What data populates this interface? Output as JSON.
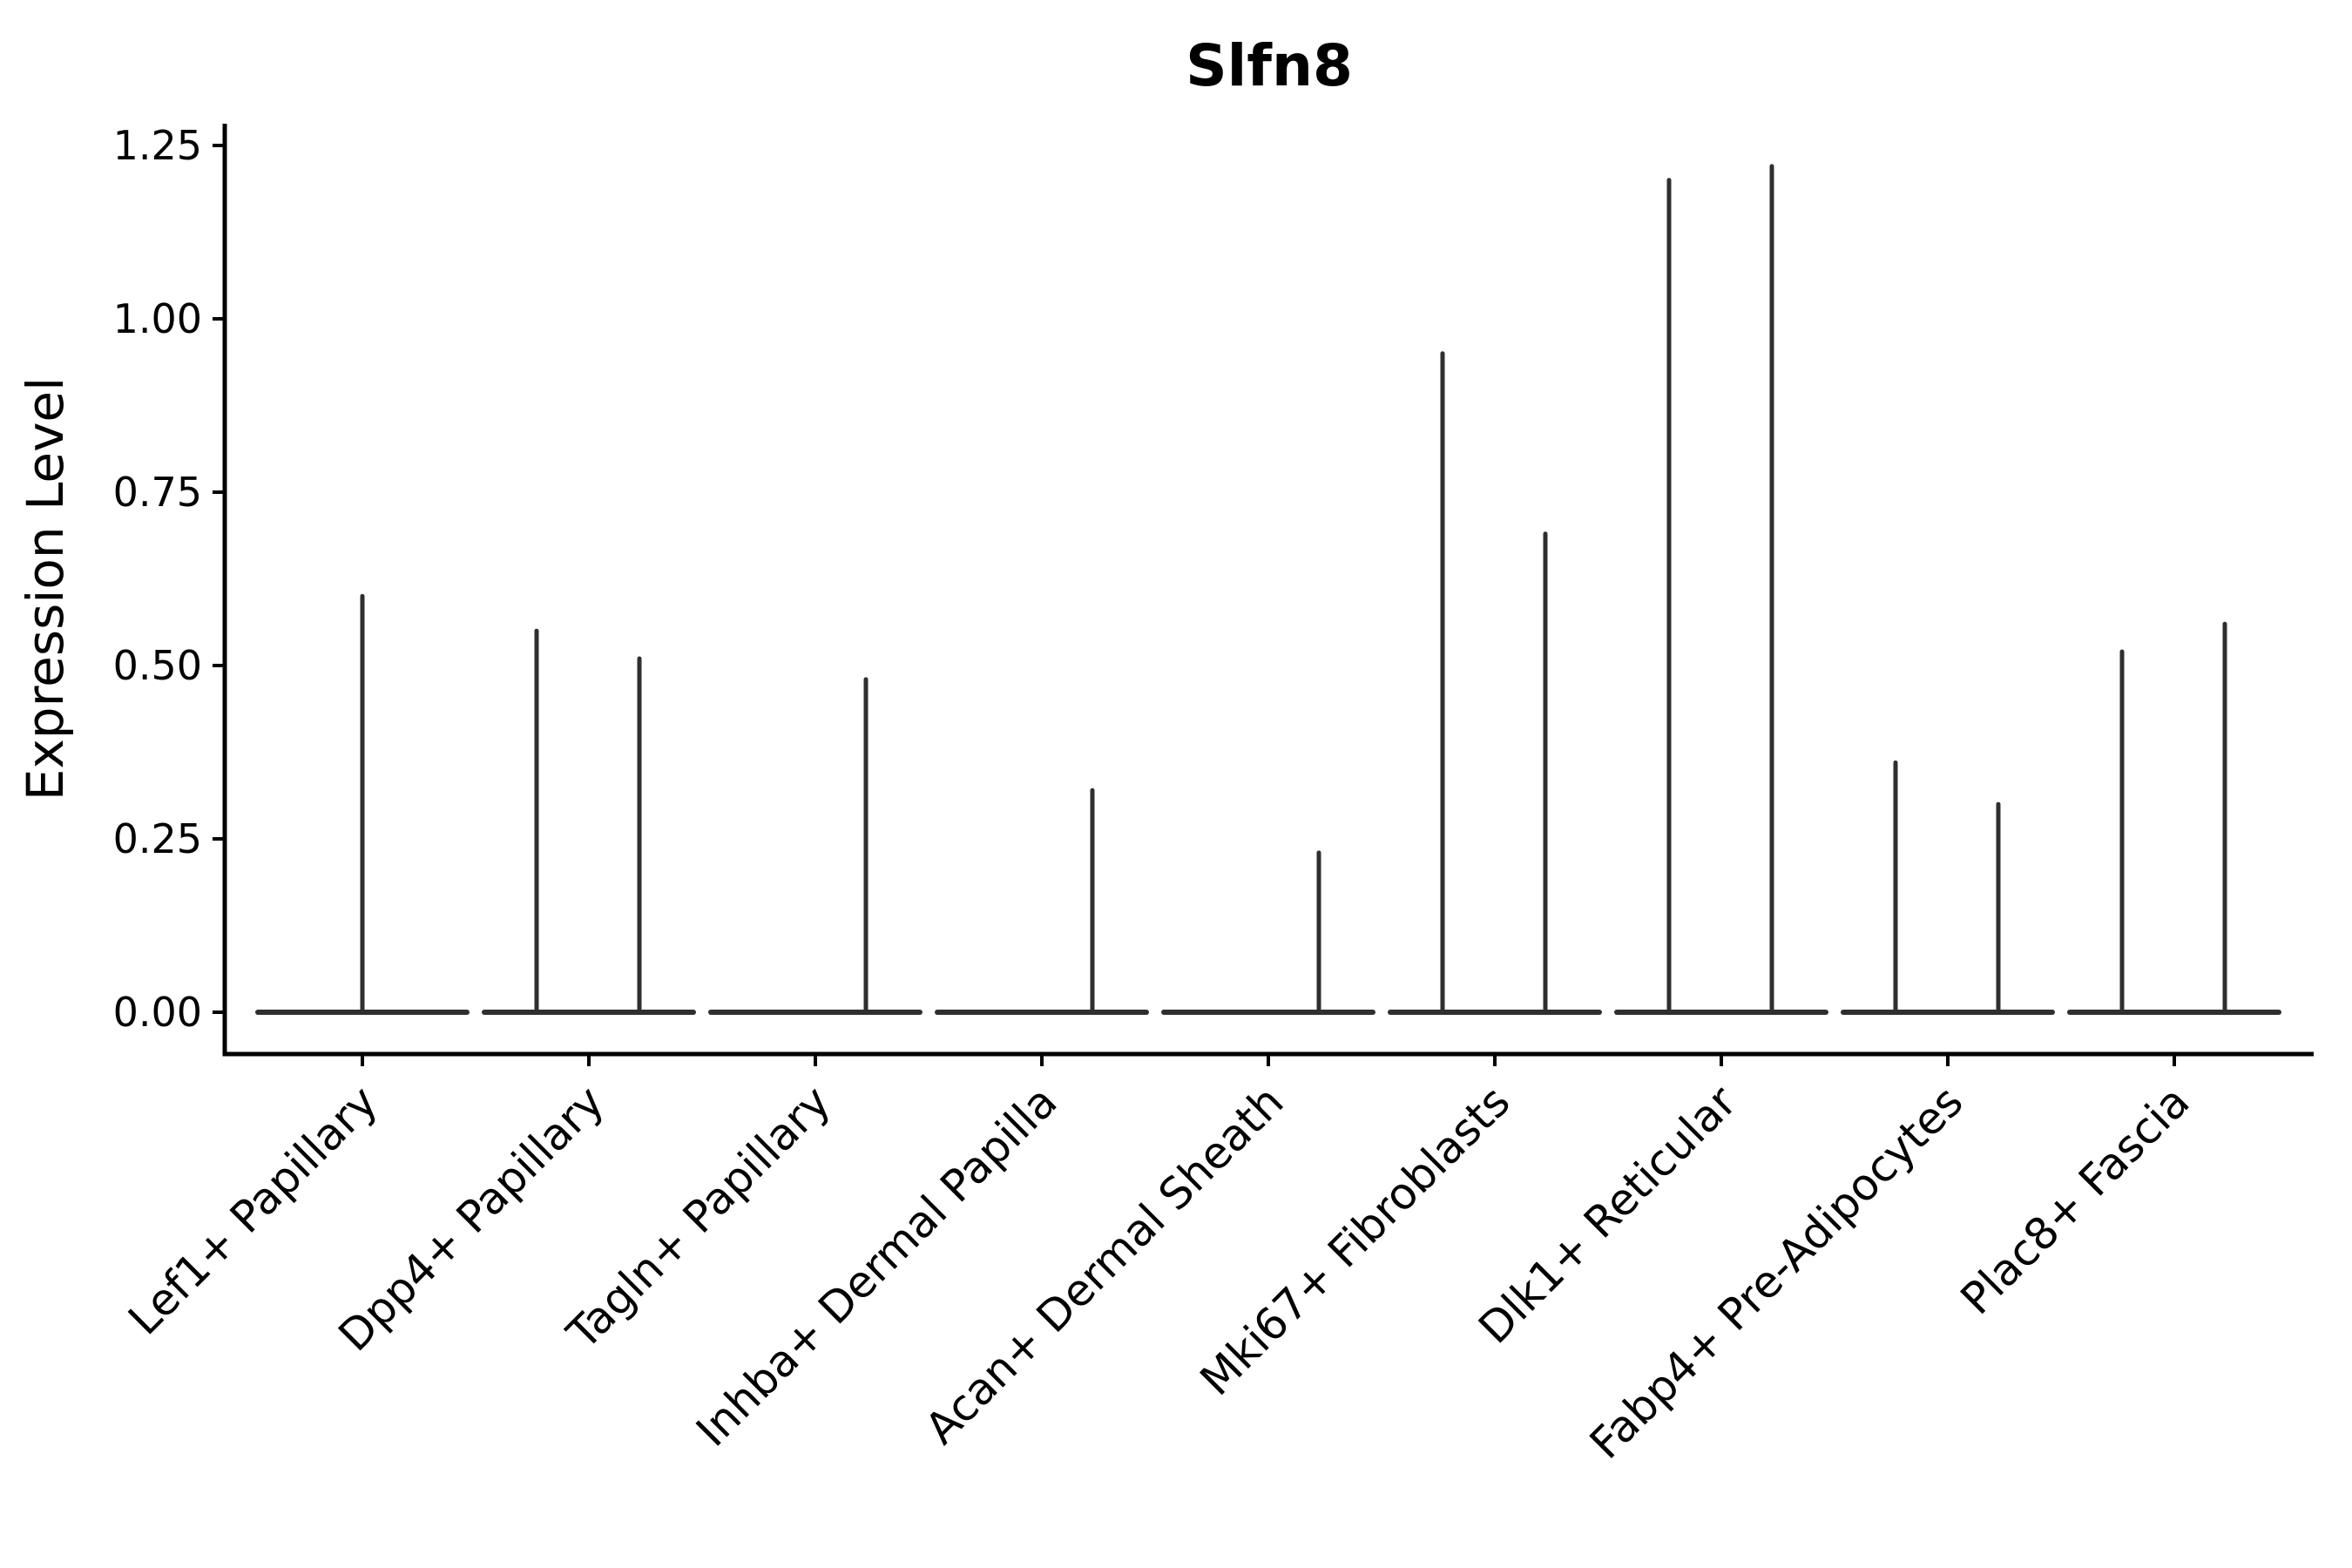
{
  "figure": {
    "background": "#ffffff",
    "title": "Slfn8"
  },
  "chart_data": {
    "type": "violin",
    "title": "Slfn8",
    "xlabel": "",
    "ylabel": "Expression Level",
    "ylim": [
      -0.06,
      1.28
    ],
    "yticks": [
      "0.00",
      "0.25",
      "0.50",
      "0.75",
      "1.00",
      "1.25"
    ],
    "ytick_values": [
      0.0,
      0.25,
      0.5,
      0.75,
      1.0,
      1.25
    ],
    "grid": false,
    "legend": "none",
    "violin_color": "#2f2f2f",
    "axis_color": "#000000",
    "text_color": "#000000",
    "description": "Thin spike violins: every category has a flat zero-density baseline; spikes mark the maximum expression of each group violin.",
    "categories": [
      {
        "label": "Lef1+ Papillary",
        "violins": [
          {
            "side": "center",
            "max": 0.6
          }
        ]
      },
      {
        "label": "Dpp4+ Papillary",
        "violins": [
          {
            "side": "left",
            "max": 0.55
          },
          {
            "side": "right",
            "max": 0.51
          }
        ]
      },
      {
        "label": "Tagln+ Papillary",
        "violins": [
          {
            "side": "right",
            "max": 0.48
          }
        ]
      },
      {
        "label": "Inhba+ Dermal Papilla",
        "violins": [
          {
            "side": "right",
            "max": 0.32
          }
        ]
      },
      {
        "label": "Acan+ Dermal Sheath",
        "violins": [
          {
            "side": "right",
            "max": 0.23
          }
        ]
      },
      {
        "label": "Mki67+ Fibroblasts",
        "violins": [
          {
            "side": "left",
            "max": 0.95
          },
          {
            "side": "right",
            "max": 0.69
          }
        ]
      },
      {
        "label": "Dlk1+ Reticular",
        "violins": [
          {
            "side": "left",
            "max": 1.2
          },
          {
            "side": "right",
            "max": 1.22
          }
        ]
      },
      {
        "label": "Fabp4+ Pre-Adipocytes",
        "violins": [
          {
            "side": "left",
            "max": 0.36
          },
          {
            "side": "right",
            "max": 0.3
          }
        ]
      },
      {
        "label": "Plac8+ Fascia",
        "violins": [
          {
            "side": "left",
            "max": 0.52
          },
          {
            "side": "right",
            "max": 0.56
          }
        ]
      }
    ]
  }
}
